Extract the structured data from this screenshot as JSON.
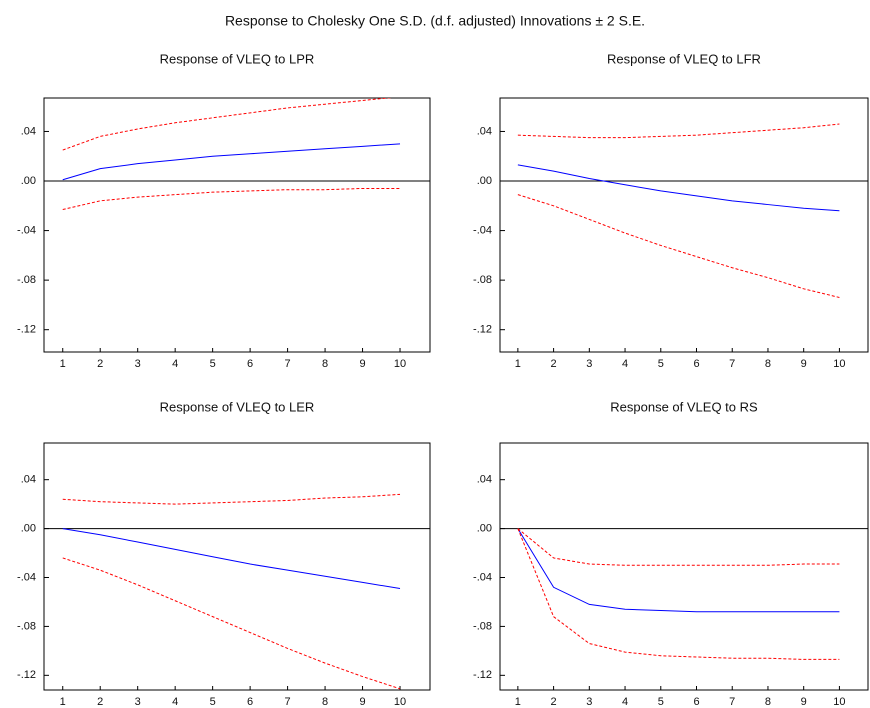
{
  "title": "Response to Cholesky One S.D. (d.f. adjusted) Innovations ± 2 S.E.",
  "chart_data": [
    {
      "type": "line",
      "title": "Response of VLEQ to LPR",
      "x": [
        1,
        2,
        3,
        4,
        5,
        6,
        7,
        8,
        9,
        10
      ],
      "xlim": [
        0.5,
        10.8
      ],
      "xticks": [
        1,
        2,
        3,
        4,
        5,
        6,
        7,
        8,
        9,
        10
      ],
      "ylim": [
        -0.138,
        0.067
      ],
      "yticks": [
        {
          "value": 0.04,
          "label": ".04"
        },
        {
          "value": 0,
          "label": ".00"
        },
        {
          "value": -0.04,
          "label": "-.04"
        },
        {
          "value": -0.08,
          "label": "-.08"
        },
        {
          "value": -0.12,
          "label": "-.12"
        }
      ],
      "series": [
        {
          "color": "#0000ff",
          "style": "solid",
          "values": [
            0.001,
            0.01,
            0.014,
            0.017,
            0.02,
            0.022,
            0.024,
            0.026,
            0.028,
            0.03
          ]
        },
        {
          "color": "#ff0000",
          "style": "dashed",
          "values": [
            0.025,
            0.036,
            0.042,
            0.047,
            0.051,
            0.055,
            0.059,
            0.062,
            0.065,
            0.068
          ]
        },
        {
          "color": "#ff0000",
          "style": "dashed",
          "values": [
            -0.023,
            -0.016,
            -0.013,
            -0.011,
            -0.009,
            -0.008,
            -0.007,
            -0.007,
            -0.006,
            -0.006
          ]
        }
      ]
    },
    {
      "type": "line",
      "title": "Response of VLEQ to LFR",
      "x": [
        1,
        2,
        3,
        4,
        5,
        6,
        7,
        8,
        9,
        10
      ],
      "xlim": [
        0.5,
        10.8
      ],
      "xticks": [
        1,
        2,
        3,
        4,
        5,
        6,
        7,
        8,
        9,
        10
      ],
      "ylim": [
        -0.138,
        0.067
      ],
      "yticks": [
        {
          "value": 0.04,
          "label": ".04"
        },
        {
          "value": 0,
          "label": ".00"
        },
        {
          "value": -0.04,
          "label": "-.04"
        },
        {
          "value": -0.08,
          "label": "-.08"
        },
        {
          "value": -0.12,
          "label": "-.12"
        }
      ],
      "series": [
        {
          "color": "#0000ff",
          "style": "solid",
          "values": [
            0.013,
            0.008,
            0.002,
            -0.003,
            -0.008,
            -0.012,
            -0.016,
            -0.019,
            -0.022,
            -0.024
          ]
        },
        {
          "color": "#ff0000",
          "style": "dashed",
          "values": [
            0.037,
            0.036,
            0.035,
            0.035,
            0.036,
            0.037,
            0.039,
            0.041,
            0.043,
            0.046
          ]
        },
        {
          "color": "#ff0000",
          "style": "dashed",
          "values": [
            -0.011,
            -0.02,
            -0.031,
            -0.042,
            -0.052,
            -0.061,
            -0.07,
            -0.078,
            -0.087,
            -0.094
          ]
        }
      ]
    },
    {
      "type": "line",
      "title": "Response of VLEQ to LER",
      "x": [
        1,
        2,
        3,
        4,
        5,
        6,
        7,
        8,
        9,
        10
      ],
      "xlim": [
        0.5,
        10.8
      ],
      "xticks": [
        1,
        2,
        3,
        4,
        5,
        6,
        7,
        8,
        9,
        10
      ],
      "ylim": [
        -0.132,
        0.07
      ],
      "yticks": [
        {
          "value": 0.04,
          "label": ".04"
        },
        {
          "value": 0,
          "label": ".00"
        },
        {
          "value": -0.04,
          "label": "-.04"
        },
        {
          "value": -0.08,
          "label": "-.08"
        },
        {
          "value": -0.12,
          "label": "-.12"
        }
      ],
      "series": [
        {
          "color": "#0000ff",
          "style": "solid",
          "values": [
            0.0,
            -0.005,
            -0.011,
            -0.017,
            -0.023,
            -0.029,
            -0.034,
            -0.039,
            -0.044,
            -0.049
          ]
        },
        {
          "color": "#ff0000",
          "style": "dashed",
          "values": [
            0.024,
            0.022,
            0.021,
            0.02,
            0.021,
            0.022,
            0.023,
            0.025,
            0.026,
            0.028
          ]
        },
        {
          "color": "#ff0000",
          "style": "dashed",
          "values": [
            -0.024,
            -0.034,
            -0.046,
            -0.059,
            -0.072,
            -0.085,
            -0.098,
            -0.11,
            -0.121,
            -0.131
          ]
        }
      ]
    },
    {
      "type": "line",
      "title": "Response of VLEQ to RS",
      "x": [
        1,
        2,
        3,
        4,
        5,
        6,
        7,
        8,
        9,
        10
      ],
      "xlim": [
        0.5,
        10.8
      ],
      "xticks": [
        1,
        2,
        3,
        4,
        5,
        6,
        7,
        8,
        9,
        10
      ],
      "ylim": [
        -0.132,
        0.07
      ],
      "yticks": [
        {
          "value": 0.04,
          "label": ".04"
        },
        {
          "value": 0,
          "label": ".00"
        },
        {
          "value": -0.04,
          "label": "-.04"
        },
        {
          "value": -0.08,
          "label": "-.08"
        },
        {
          "value": -0.12,
          "label": "-.12"
        }
      ],
      "series": [
        {
          "color": "#0000ff",
          "style": "solid",
          "values": [
            0.0,
            -0.048,
            -0.062,
            -0.066,
            -0.067,
            -0.068,
            -0.068,
            -0.068,
            -0.068,
            -0.068
          ]
        },
        {
          "color": "#ff0000",
          "style": "dashed",
          "values": [
            0.0,
            -0.024,
            -0.029,
            -0.03,
            -0.03,
            -0.03,
            -0.03,
            -0.03,
            -0.029,
            -0.029
          ]
        },
        {
          "color": "#ff0000",
          "style": "dashed",
          "values": [
            0.0,
            -0.072,
            -0.094,
            -0.101,
            -0.104,
            -0.105,
            -0.106,
            -0.106,
            -0.107,
            -0.107
          ]
        }
      ]
    }
  ]
}
